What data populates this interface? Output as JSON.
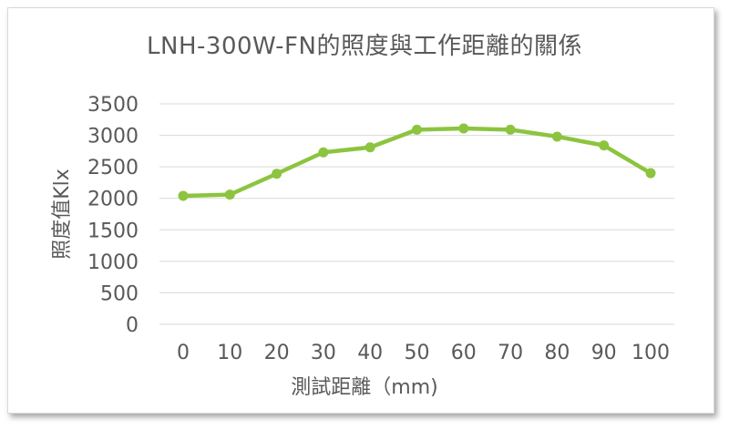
{
  "chart_data": {
    "type": "line",
    "title": "LNH-300W-FN的照度與工作距離的關係",
    "xlabel": "測試距離（mm)",
    "ylabel": "照度值Klx",
    "categories": [
      "0",
      "10",
      "20",
      "30",
      "40",
      "50",
      "60",
      "70",
      "80",
      "90",
      "100"
    ],
    "series": [
      {
        "values": [
          2040,
          2060,
          2390,
          2730,
          2810,
          3090,
          3110,
          3090,
          2980,
          2840,
          2400
        ]
      }
    ],
    "ylim": [
      0,
      3500
    ],
    "yticks": [
      "0",
      "500",
      "1000",
      "1500",
      "2000",
      "2500",
      "3000",
      "3500"
    ],
    "grid": true,
    "legend": "none",
    "colors": {
      "series": "#8cc43f",
      "grid": "#d9d9d9",
      "text": "#595959"
    }
  }
}
